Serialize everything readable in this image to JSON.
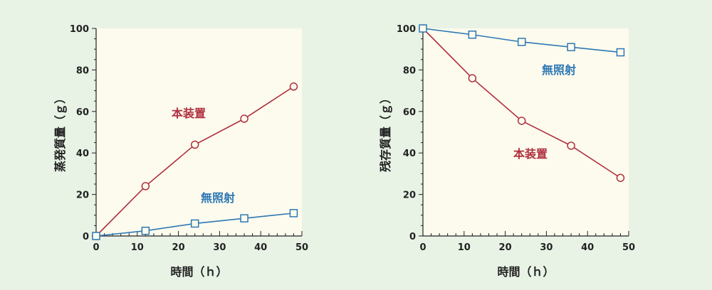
{
  "colors": {
    "background": "#e8f3e6",
    "plot_area": "#fdfbee",
    "red_series": "#b0303e",
    "blue_series": "#2e78b4",
    "axis": "#222222"
  },
  "chart_data": [
    {
      "type": "line",
      "xlabel": "時間（ｈ）",
      "ylabel": "蒸発質量（ｇ）",
      "xlim": [
        0,
        50
      ],
      "ylim": [
        0,
        100
      ],
      "xticks": [
        "0",
        "10",
        "20",
        "30",
        "40",
        "50"
      ],
      "yticks": [
        "0",
        "20",
        "40",
        "60",
        "80",
        "100"
      ],
      "grid": false,
      "series": [
        {
          "name": "本装置",
          "marker": "circle",
          "color": "#b0303e",
          "x": [
            0,
            12,
            24,
            36,
            48
          ],
          "y": [
            0,
            24,
            44,
            56.5,
            72
          ]
        },
        {
          "name": "無照射",
          "marker": "square",
          "color": "#2e78b4",
          "x": [
            0,
            12,
            24,
            36,
            48
          ],
          "y": [
            0,
            2.5,
            6,
            8.5,
            11
          ]
        }
      ]
    },
    {
      "type": "line",
      "xlabel": "時間（ｈ）",
      "ylabel": "残存質量（ｇ）",
      "xlim": [
        0,
        50
      ],
      "ylim": [
        0,
        100
      ],
      "xticks": [
        "0",
        "10",
        "20",
        "30",
        "40",
        "50"
      ],
      "yticks": [
        "0",
        "20",
        "40",
        "60",
        "80",
        "100"
      ],
      "grid": false,
      "series": [
        {
          "name": "本装置",
          "marker": "circle",
          "color": "#b0303e",
          "x": [
            0,
            12,
            24,
            36,
            48
          ],
          "y": [
            100,
            76,
            55.5,
            43.5,
            28
          ]
        },
        {
          "name": "無照射",
          "marker": "square",
          "color": "#2e78b4",
          "x": [
            0,
            12,
            24,
            36,
            48
          ],
          "y": [
            100,
            97,
            93.5,
            91,
            88.5
          ]
        }
      ]
    }
  ]
}
